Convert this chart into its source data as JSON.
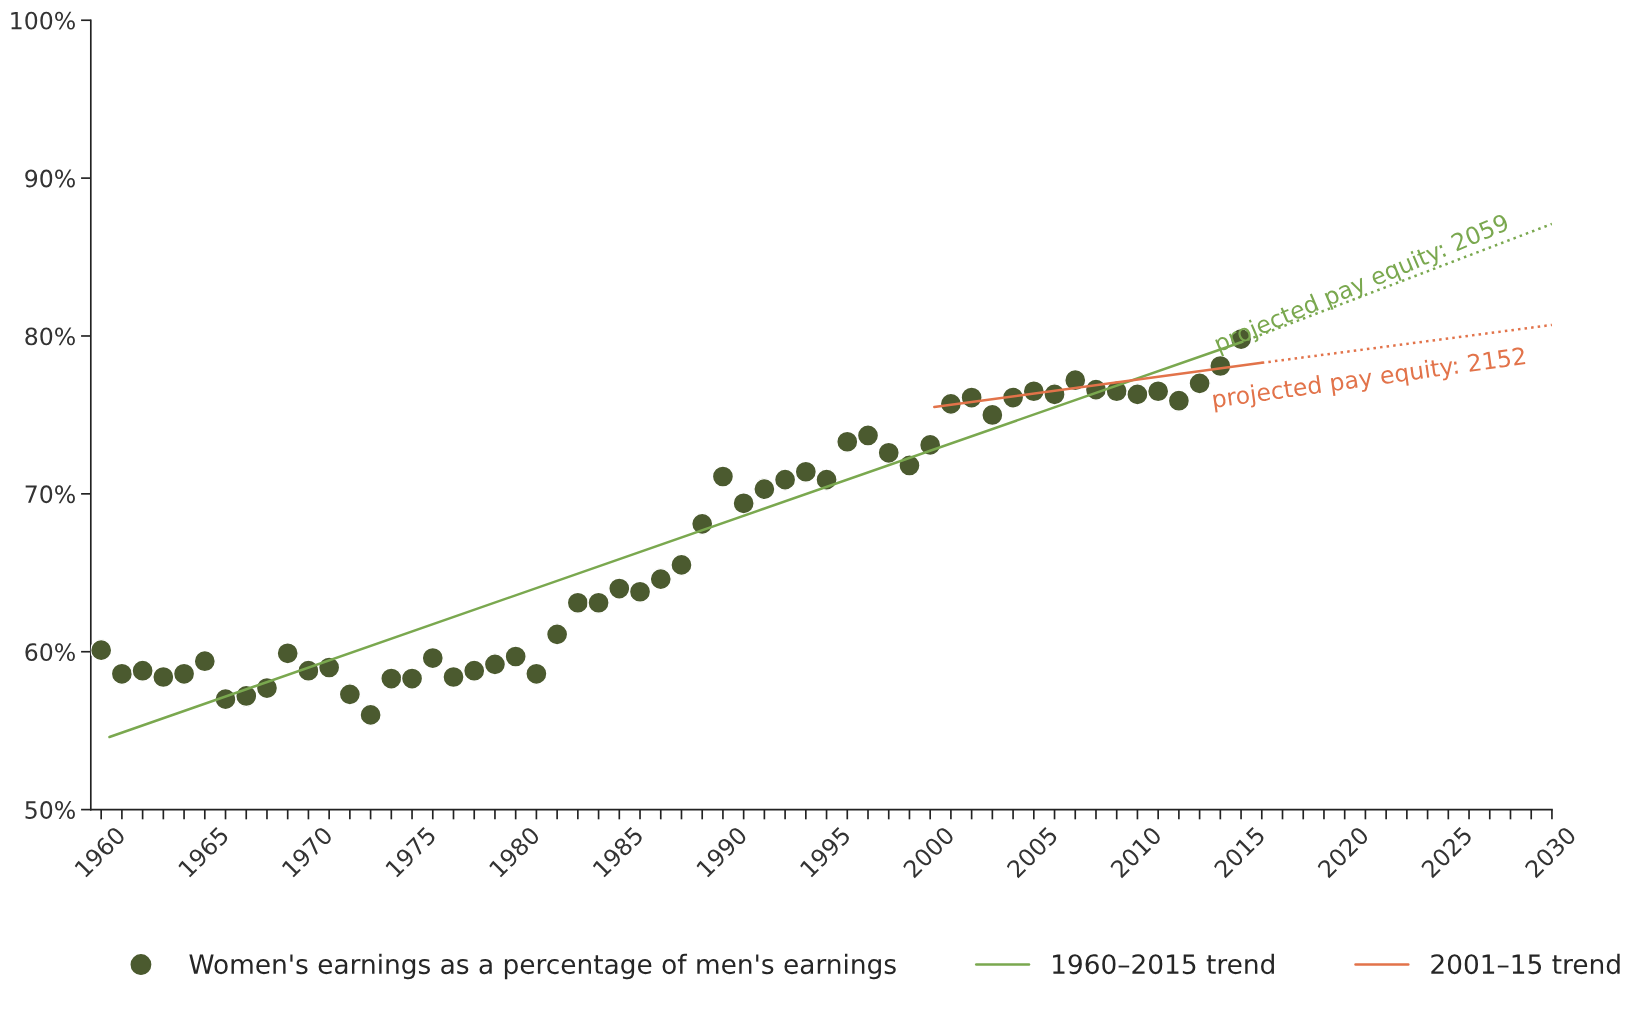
{
  "chart_data": {
    "type": "scatter",
    "x": [
      1960,
      1961,
      1962,
      1963,
      1964,
      1965,
      1966,
      1967,
      1968,
      1969,
      1970,
      1971,
      1972,
      1973,
      1974,
      1975,
      1976,
      1977,
      1978,
      1979,
      1980,
      1981,
      1982,
      1983,
      1984,
      1985,
      1986,
      1987,
      1988,
      1989,
      1990,
      1991,
      1992,
      1993,
      1994,
      1995,
      1996,
      1997,
      1998,
      1999,
      2000,
      2001,
      2002,
      2003,
      2004,
      2005,
      2006,
      2007,
      2008,
      2009,
      2010,
      2011,
      2012,
      2013,
      2014,
      2015
    ],
    "series": [
      {
        "name": "Women's earnings as a percentage of men's earnings",
        "marker": "circle",
        "color": "#4b5a2f",
        "values": [
          60.1,
          58.6,
          58.8,
          58.4,
          58.6,
          59.4,
          57.0,
          57.2,
          57.7,
          59.9,
          58.8,
          59.0,
          57.3,
          56.0,
          58.3,
          58.3,
          59.6,
          58.4,
          58.8,
          59.2,
          59.7,
          58.6,
          61.1,
          63.1,
          63.1,
          64.0,
          63.8,
          64.6,
          65.5,
          68.1,
          71.1,
          69.4,
          70.3,
          70.9,
          71.4,
          70.9,
          73.3,
          73.7,
          72.6,
          71.8,
          73.1,
          75.7,
          76.1,
          75.0,
          76.1,
          76.5,
          76.3,
          77.2,
          76.6,
          76.5,
          76.3,
          76.5,
          75.9,
          77.0,
          78.1,
          79.8
        ]
      },
      {
        "name": "1960–2015 trend",
        "type": "line",
        "line_style": "solid",
        "color": "#7aa84f",
        "x": [
          1960.4,
          2015
        ],
        "values": [
          54.6,
          79.6
        ]
      },
      {
        "type": "line",
        "line_style": "dotted",
        "color": "#7aa84f",
        "x": [
          2015,
          2030
        ],
        "values": [
          79.6,
          87.1
        ]
      },
      {
        "name": "2001–15 trend",
        "type": "line",
        "line_style": "solid",
        "color": "#e2734a",
        "x": [
          2000.2,
          2016
        ],
        "values": [
          75.5,
          78.3
        ]
      },
      {
        "type": "line",
        "line_style": "dotted",
        "color": "#e2734a",
        "x": [
          2016,
          2030
        ],
        "values": [
          78.3,
          80.7
        ]
      }
    ],
    "annotations": [
      "projected pay equity: 2059",
      "projected pay equity: 2152"
    ],
    "xlim": [
      1959.5,
      2030
    ],
    "ylim": [
      50,
      100
    ],
    "xticks": [
      1960,
      {
        "value": 1961,
        "label": null
      },
      {
        "value": 1962,
        "label": null
      },
      {
        "value": 1963,
        "label": null
      },
      {
        "value": 1964,
        "label": null
      },
      1965,
      {
        "value": 1966,
        "label": null
      },
      {
        "value": 1967,
        "label": null
      },
      {
        "value": 1968,
        "label": null
      },
      {
        "value": 1969,
        "label": null
      },
      1970,
      {
        "value": 1971,
        "label": null
      },
      {
        "value": 1972,
        "label": null
      },
      {
        "value": 1973,
        "label": null
      },
      {
        "value": 1974,
        "label": null
      },
      1975,
      {
        "value": 1976,
        "label": null
      },
      {
        "value": 1977,
        "label": null
      },
      {
        "value": 1978,
        "label": null
      },
      {
        "value": 1979,
        "label": null
      },
      1980,
      {
        "value": 1981,
        "label": null
      },
      {
        "value": 1982,
        "label": null
      },
      {
        "value": 1983,
        "label": null
      },
      {
        "value": 1984,
        "label": null
      },
      1985,
      {
        "value": 1986,
        "label": null
      },
      {
        "value": 1987,
        "label": null
      },
      {
        "value": 1988,
        "label": null
      },
      {
        "value": 1989,
        "label": null
      },
      1990,
      {
        "value": 1991,
        "label": null
      },
      {
        "value": 1992,
        "label": null
      },
      {
        "value": 1993,
        "label": null
      },
      {
        "value": 1994,
        "label": null
      },
      1995,
      {
        "value": 1996,
        "label": null
      },
      {
        "value": 1997,
        "label": null
      },
      {
        "value": 1998,
        "label": null
      },
      {
        "value": 1999,
        "label": null
      },
      2000,
      {
        "value": 2001,
        "label": null
      },
      {
        "value": 2002,
        "label": null
      },
      {
        "value": 2003,
        "label": null
      },
      {
        "value": 2004,
        "label": null
      },
      2005,
      {
        "value": 2006,
        "label": null
      },
      {
        "value": 2007,
        "label": null
      },
      {
        "value": 2008,
        "label": null
      },
      {
        "value": 2009,
        "label": null
      },
      2010,
      {
        "value": 2011,
        "label": null
      },
      {
        "value": 2012,
        "label": null
      },
      {
        "value": 2013,
        "label": null
      },
      {
        "value": 2014,
        "label": null
      },
      2015,
      {
        "value": 2016,
        "label": null
      },
      {
        "value": 2017,
        "label": null
      },
      {
        "value": 2018,
        "label": null
      },
      {
        "value": 2019,
        "label": null
      },
      2020,
      {
        "value": 2021,
        "label": null
      },
      {
        "value": 2022,
        "label": null
      },
      {
        "value": 2023,
        "label": null
      },
      {
        "value": 2024,
        "label": null
      },
      2025,
      {
        "value": 2026,
        "label": null
      },
      {
        "value": 2027,
        "label": null
      },
      {
        "value": 2028,
        "label": null
      },
      {
        "value": 2029,
        "label": null
      },
      2030
    ],
    "yticks": [
      {
        "value": 50,
        "label": "50%"
      },
      {
        "value": 60,
        "label": "60%"
      },
      {
        "value": 70,
        "label": "70%"
      },
      {
        "value": 80,
        "label": "80%"
      },
      {
        "value": 90,
        "label": "90%"
      },
      {
        "value": 100,
        "label": "100%"
      }
    ],
    "grid": false,
    "legend": "bottom"
  }
}
